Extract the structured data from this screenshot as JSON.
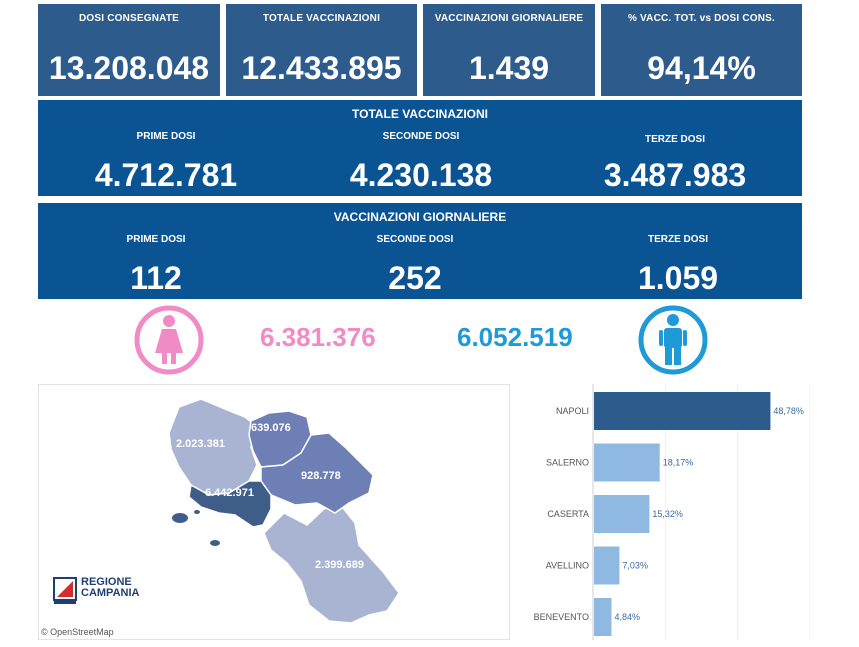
{
  "kpis": [
    {
      "label": "DOSI  CONSEGNATE",
      "value": "13.208.048"
    },
    {
      "label": "TOTALE VACCINAZIONI",
      "value": "12.433.895"
    },
    {
      "label": "VACCINAZIONI GIORNALIERE",
      "value": "1.439"
    },
    {
      "label": "% VACC. TOT. vs DOSI CONS.",
      "value": "94,14%"
    }
  ],
  "totale": {
    "title": "TOTALE VACCINAZIONI",
    "items": [
      {
        "label": "PRIME DOSI",
        "value": "4.712.781"
      },
      {
        "label": "SECONDE DOSI",
        "value": "4.230.138"
      },
      {
        "label": "TERZE DOSI",
        "value": "3.487.983"
      }
    ]
  },
  "giornaliere": {
    "title": "VACCINAZIONI GIORNALIERE",
    "items": [
      {
        "label": "PRIME DOSI",
        "value": "112"
      },
      {
        "label": "SECONDE DOSI",
        "value": "252"
      },
      {
        "label": "TERZE DOSI",
        "value": "1.059"
      }
    ]
  },
  "gender": {
    "female_value": "6.381.376",
    "male_value": "6.052.519",
    "female_color": "#f08bc6",
    "male_color": "#1e9ad6",
    "female_icon": "female-icon",
    "male_icon": "male-icon"
  },
  "map": {
    "province_values": {
      "caserta": "2.023.381",
      "benevento": "639.076",
      "avellino": "928.778",
      "napoli": "6.442.971",
      "salerno": "2.399.689"
    },
    "attribution": "© OpenStreetMap",
    "logo_line1": "REGIONE",
    "logo_line2": "CAMPANIA"
  },
  "colors": {
    "kpi_bg": "#2d5b8c",
    "band_bg": "#0a5494",
    "bar_top": "#2d5b8c",
    "bar_other": "#8fb9e0"
  },
  "chart_data": {
    "type": "bar",
    "orientation": "horizontal",
    "categories": [
      "NAPOLI",
      "SALERNO",
      "CASERTA",
      "AVELLINO",
      "BENEVENTO"
    ],
    "values": [
      48.78,
      18.17,
      15.32,
      7.03,
      4.84
    ],
    "labels": [
      "48,78%",
      "18,17%",
      "15,32%",
      "7,03%",
      "4,84%"
    ],
    "grid": true
  }
}
